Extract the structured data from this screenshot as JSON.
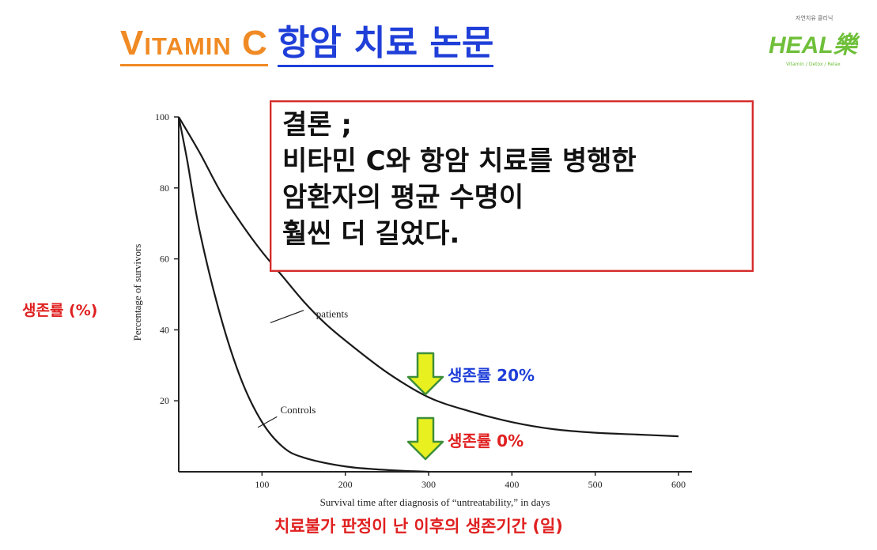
{
  "slide": {
    "title_en": "Vitamin C",
    "title_ko": "항암 치료 논문",
    "logo": {
      "tagline": "자연치유 클리닉",
      "text": "HEAL樂",
      "sub": "Vitamin / Detox / Relax"
    },
    "conclusion_lines": [
      "결론 ;",
      "비타민 C와 항암 치료를 병행한",
      "암환자의 평균 수명이",
      "훨씬 더 길었다."
    ],
    "ylabel_ko": "생존률 (%)",
    "xlabel_ko": "치료불가 판정이 난 이후의 생존기간 (일)",
    "annotation_20": "생존률 20%",
    "annotation_0": "생존률 0%",
    "arrow_color": "#e8f020"
  },
  "chart_data": {
    "type": "line",
    "xlabel": "Survival time after diagnosis of “untreatability,” in days",
    "ylabel": "Percentage of survivors",
    "xlim": [
      0,
      600
    ],
    "ylim": [
      0,
      100
    ],
    "xticks": [
      100,
      200,
      300,
      400,
      500,
      600
    ],
    "yticks": [
      20,
      40,
      60,
      80,
      100
    ],
    "grid": false,
    "series": [
      {
        "name": "patients",
        "x": [
          0,
          25,
          50,
          75,
          100,
          125,
          150,
          175,
          200,
          250,
          300,
          350,
          400,
          450,
          500,
          550,
          600
        ],
        "y": [
          100,
          90,
          79,
          70,
          62,
          55,
          48,
          42,
          37,
          28,
          21,
          17,
          14,
          12,
          11,
          10.5,
          10
        ]
      },
      {
        "name": "Controls",
        "x": [
          0,
          10,
          25,
          50,
          75,
          100,
          125,
          150,
          200,
          250,
          300
        ],
        "y": [
          100,
          88,
          68,
          44,
          26,
          14,
          7,
          4,
          1.5,
          0.5,
          0
        ]
      }
    ]
  }
}
